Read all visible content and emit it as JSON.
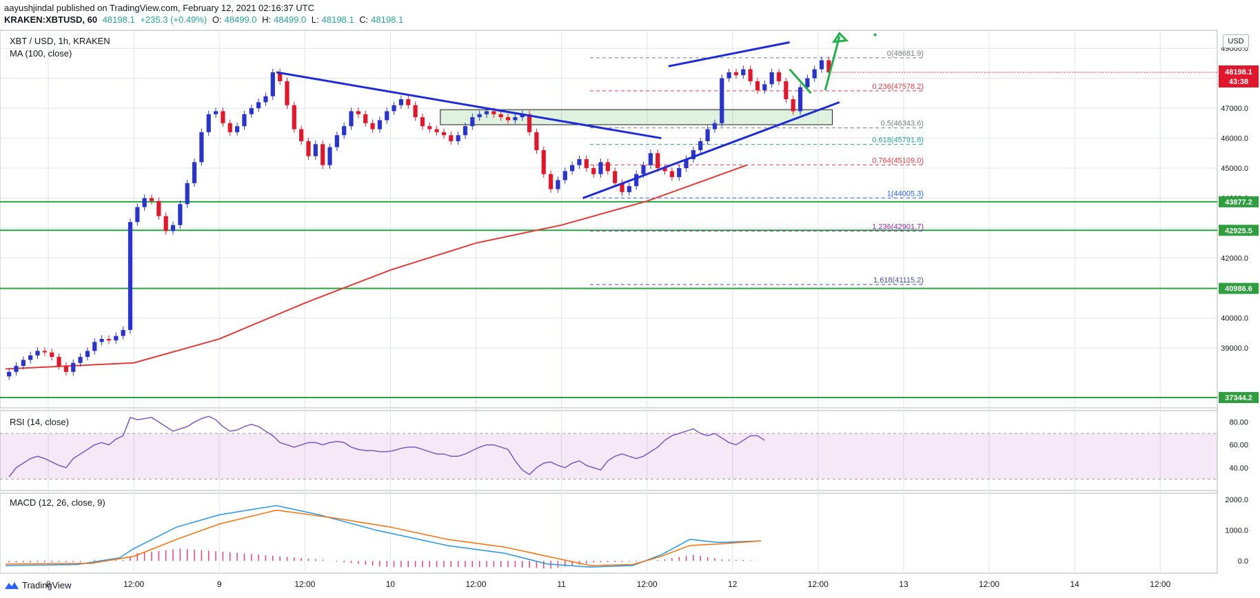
{
  "header": {
    "publisher_line": "aayushjindal published on TradingView.com, February 12, 2021 02:16:37 UTC",
    "symbol": "KRAKEN:XBTUSD, 60",
    "price": "48198.1",
    "change": "+235.3 (+0.49%)",
    "o_label": "O:",
    "o_val": "48499.0",
    "h_label": "H:",
    "h_val": "48499.0",
    "l_label": "L:",
    "l_val": "48198.1",
    "c_label": "C:",
    "c_val": "48198.1"
  },
  "main_panel": {
    "title": "XBT / USD, 1h, KRAKEN",
    "indicator": "MA (100, close)",
    "currency_button": "USD"
  },
  "rsi_panel": {
    "title": "RSI (14, close)"
  },
  "macd_panel": {
    "title": "MACD (12, 26, close, 9)"
  },
  "footer": {
    "brand": "TradingView"
  },
  "chart_data": {
    "type": "candlestick",
    "title": "XBT / USD, 1h, KRAKEN",
    "ylim": [
      37000,
      49600
    ],
    "y_ticks": [
      "39000.0",
      "40000.0",
      "41000.0",
      "42000.0",
      "43000.0",
      "44000.0",
      "45000.0",
      "46000.0",
      "47000.0",
      "48000.0",
      "49000.0"
    ],
    "x_ticks": [
      {
        "label": "8",
        "t": 6
      },
      {
        "label": "12:00",
        "t": 18
      },
      {
        "label": "9",
        "t": 30
      },
      {
        "label": "12:00",
        "t": 42
      },
      {
        "label": "10",
        "t": 54
      },
      {
        "label": "12:00",
        "t": 66
      },
      {
        "label": "11",
        "t": 78
      },
      {
        "label": "12:00",
        "t": 90
      },
      {
        "label": "12",
        "t": 102
      },
      {
        "label": "12:00",
        "t": 114
      },
      {
        "label": "13",
        "t": 126
      },
      {
        "label": "12:00",
        "t": 138
      },
      {
        "label": "14",
        "t": 150
      },
      {
        "label": "12:00",
        "t": 162
      }
    ],
    "candles_close": [
      38200,
      38400,
      38600,
      38750,
      38900,
      38850,
      38700,
      38400,
      38200,
      38500,
      38700,
      38900,
      39200,
      39300,
      39250,
      39400,
      39600,
      43200,
      43700,
      44000,
      43900,
      43400,
      42900,
      43100,
      43800,
      44500,
      45200,
      46200,
      46800,
      46900,
      46500,
      46200,
      46400,
      46800,
      47000,
      47200,
      47400,
      48200,
      47900,
      47100,
      46300,
      45900,
      45400,
      45800,
      45100,
      45700,
      46100,
      46400,
      46900,
      46800,
      46500,
      46300,
      46600,
      46900,
      47100,
      47300,
      47100,
      46700,
      46400,
      46300,
      46200,
      46100,
      45900,
      46100,
      46400,
      46700,
      46800,
      46900,
      46800,
      46700,
      46600,
      46700,
      46800,
      46200,
      45600,
      44800,
      44300,
      44600,
      44900,
      45100,
      45300,
      45000,
      44800,
      45200,
      44900,
      44500,
      44200,
      44400,
      44800,
      45100,
      45500,
      45000,
      44900,
      44700,
      45000,
      45300,
      45600,
      45900,
      46300,
      46500,
      48000,
      48200,
      48100,
      48300,
      47900,
      47600,
      47800,
      48200,
      47900,
      47300,
      46900,
      47700,
      48000,
      48300,
      48600,
      48198
    ],
    "ma100": [
      [
        0,
        38300
      ],
      [
        18,
        38500
      ],
      [
        30,
        39300
      ],
      [
        42,
        40500
      ],
      [
        54,
        41600
      ],
      [
        66,
        42500
      ],
      [
        78,
        43100
      ],
      [
        90,
        43900
      ],
      [
        104,
        45100
      ]
    ],
    "fib_levels": [
      {
        "ratio": "0",
        "value": 48681.9,
        "label": "0(48681.9)",
        "color": "#787b86"
      },
      {
        "ratio": "0.236",
        "value": 47578.2,
        "label": "0.236(47578.2)",
        "color": "#f23645"
      },
      {
        "ratio": "0.5",
        "value": 46343.6,
        "label": "0.5(46343.6)",
        "color": "#787b86"
      },
      {
        "ratio": "0.618",
        "value": 45791.8,
        "label": "0.618(45791.8)",
        "color": "#26a69a"
      },
      {
        "ratio": "0.764",
        "value": 45109.0,
        "label": "0.764(45109.0)",
        "color": "#f23645"
      },
      {
        "ratio": "1",
        "value": 44005.3,
        "label": "1(44005.3)",
        "color": "#2962ff"
      },
      {
        "ratio": "1.236",
        "value": 42901.7,
        "label": "1.236(42901.7)",
        "color": "#9c27b0"
      },
      {
        "ratio": "1.618",
        "value": 41115.2,
        "label": "1.618(41115.2)",
        "color": "#3f51b5"
      }
    ],
    "horizontal_support": [
      {
        "value": 43877.2,
        "label": "43877.2"
      },
      {
        "value": 42925.5,
        "label": "42925.5"
      },
      {
        "value": 40986.6,
        "label": "40986.6"
      },
      {
        "value": 37344.2,
        "label": "37344.2"
      }
    ],
    "last_price": {
      "value": 48198.1,
      "label": "48198.1",
      "countdown": "43:38"
    },
    "trendlines": [
      {
        "name": "bearish-trendline",
        "from": [
          38,
          48200
        ],
        "to": [
          92,
          46000
        ]
      },
      {
        "name": "channel-upper",
        "from": [
          93,
          48400
        ],
        "to": [
          110,
          49200
        ]
      },
      {
        "name": "channel-lower",
        "from": [
          81,
          44000
        ],
        "to": [
          117,
          47200
        ]
      }
    ],
    "resistance_zone": {
      "from_t": 61,
      "to_t": 116,
      "low": 46450,
      "high": 46950
    },
    "rsi": {
      "title": "RSI (14, close)",
      "ylim": [
        20,
        90
      ],
      "ticks": [
        "80.00",
        "60.00",
        "40.00"
      ],
      "band": [
        30,
        70
      ],
      "values": [
        32,
        40,
        44,
        48,
        50,
        48,
        45,
        42,
        40,
        48,
        52,
        56,
        60,
        62,
        60,
        65,
        68,
        84,
        82,
        83,
        84,
        80,
        76,
        72,
        74,
        76,
        80,
        83,
        85,
        82,
        76,
        72,
        73,
        76,
        78,
        76,
        72,
        68,
        62,
        60,
        58,
        60,
        62,
        62,
        60,
        62,
        63,
        62,
        58,
        56,
        55,
        55,
        54,
        54,
        55,
        57,
        58,
        58,
        56,
        54,
        52,
        52,
        50,
        50,
        52,
        55,
        58,
        60,
        60,
        58,
        56,
        46,
        38,
        34,
        40,
        44,
        45,
        42,
        40,
        44,
        46,
        42,
        40,
        38,
        46,
        50,
        52,
        50,
        48,
        50,
        54,
        58,
        64,
        68,
        70,
        72,
        74,
        70,
        68,
        70,
        66,
        62,
        60,
        64,
        68,
        68,
        64
      ]
    },
    "macd": {
      "title": "MACD (12, 26, close, 9)",
      "ylim": [
        -400,
        2200
      ],
      "ticks": [
        "2000.0",
        "1000.0",
        "0.0"
      ],
      "macd_line": [
        [
          0,
          -150
        ],
        [
          10,
          -120
        ],
        [
          16,
          100
        ],
        [
          18,
          400
        ],
        [
          24,
          1100
        ],
        [
          30,
          1500
        ],
        [
          38,
          1800
        ],
        [
          44,
          1500
        ],
        [
          52,
          1000
        ],
        [
          62,
          500
        ],
        [
          70,
          250
        ],
        [
          76,
          -100
        ],
        [
          82,
          -200
        ],
        [
          88,
          -150
        ],
        [
          92,
          200
        ],
        [
          96,
          700
        ],
        [
          100,
          600
        ],
        [
          106,
          650
        ]
      ],
      "signal_line": [
        [
          0,
          -100
        ],
        [
          12,
          -80
        ],
        [
          18,
          150
        ],
        [
          24,
          700
        ],
        [
          30,
          1200
        ],
        [
          38,
          1650
        ],
        [
          46,
          1400
        ],
        [
          54,
          1100
        ],
        [
          62,
          700
        ],
        [
          70,
          450
        ],
        [
          76,
          150
        ],
        [
          82,
          -150
        ],
        [
          88,
          -120
        ],
        [
          92,
          150
        ],
        [
          96,
          500
        ],
        [
          100,
          550
        ],
        [
          106,
          650
        ]
      ],
      "hist_color": "#ec407a"
    }
  }
}
